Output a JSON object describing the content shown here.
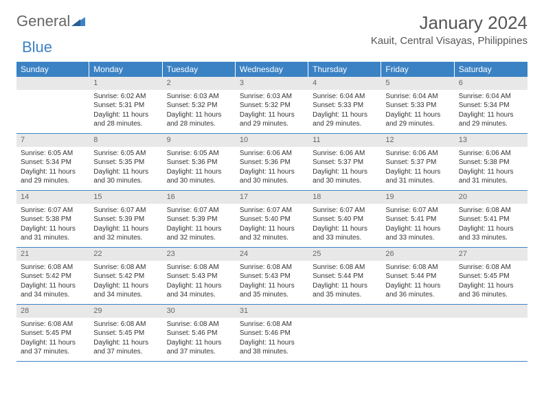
{
  "logo": {
    "general": "General",
    "blue": "Blue"
  },
  "header": {
    "month_title": "January 2024",
    "location": "Kauit, Central Visayas, Philippines"
  },
  "weekdays": [
    "Sunday",
    "Monday",
    "Tuesday",
    "Wednesday",
    "Thursday",
    "Friday",
    "Saturday"
  ],
  "colors": {
    "header_bg": "#3b82c4",
    "daynum_bg": "#e8e8e8",
    "text": "#333333",
    "logo_blue": "#3b82c4",
    "logo_gray": "#666666"
  },
  "weeks": [
    [
      {
        "day": "",
        "sunrise": "",
        "sunset": "",
        "daylight": ""
      },
      {
        "day": "1",
        "sunrise": "Sunrise: 6:02 AM",
        "sunset": "Sunset: 5:31 PM",
        "daylight": "Daylight: 11 hours and 28 minutes."
      },
      {
        "day": "2",
        "sunrise": "Sunrise: 6:03 AM",
        "sunset": "Sunset: 5:32 PM",
        "daylight": "Daylight: 11 hours and 28 minutes."
      },
      {
        "day": "3",
        "sunrise": "Sunrise: 6:03 AM",
        "sunset": "Sunset: 5:32 PM",
        "daylight": "Daylight: 11 hours and 29 minutes."
      },
      {
        "day": "4",
        "sunrise": "Sunrise: 6:04 AM",
        "sunset": "Sunset: 5:33 PM",
        "daylight": "Daylight: 11 hours and 29 minutes."
      },
      {
        "day": "5",
        "sunrise": "Sunrise: 6:04 AM",
        "sunset": "Sunset: 5:33 PM",
        "daylight": "Daylight: 11 hours and 29 minutes."
      },
      {
        "day": "6",
        "sunrise": "Sunrise: 6:04 AM",
        "sunset": "Sunset: 5:34 PM",
        "daylight": "Daylight: 11 hours and 29 minutes."
      }
    ],
    [
      {
        "day": "7",
        "sunrise": "Sunrise: 6:05 AM",
        "sunset": "Sunset: 5:34 PM",
        "daylight": "Daylight: 11 hours and 29 minutes."
      },
      {
        "day": "8",
        "sunrise": "Sunrise: 6:05 AM",
        "sunset": "Sunset: 5:35 PM",
        "daylight": "Daylight: 11 hours and 30 minutes."
      },
      {
        "day": "9",
        "sunrise": "Sunrise: 6:05 AM",
        "sunset": "Sunset: 5:36 PM",
        "daylight": "Daylight: 11 hours and 30 minutes."
      },
      {
        "day": "10",
        "sunrise": "Sunrise: 6:06 AM",
        "sunset": "Sunset: 5:36 PM",
        "daylight": "Daylight: 11 hours and 30 minutes."
      },
      {
        "day": "11",
        "sunrise": "Sunrise: 6:06 AM",
        "sunset": "Sunset: 5:37 PM",
        "daylight": "Daylight: 11 hours and 30 minutes."
      },
      {
        "day": "12",
        "sunrise": "Sunrise: 6:06 AM",
        "sunset": "Sunset: 5:37 PM",
        "daylight": "Daylight: 11 hours and 31 minutes."
      },
      {
        "day": "13",
        "sunrise": "Sunrise: 6:06 AM",
        "sunset": "Sunset: 5:38 PM",
        "daylight": "Daylight: 11 hours and 31 minutes."
      }
    ],
    [
      {
        "day": "14",
        "sunrise": "Sunrise: 6:07 AM",
        "sunset": "Sunset: 5:38 PM",
        "daylight": "Daylight: 11 hours and 31 minutes."
      },
      {
        "day": "15",
        "sunrise": "Sunrise: 6:07 AM",
        "sunset": "Sunset: 5:39 PM",
        "daylight": "Daylight: 11 hours and 32 minutes."
      },
      {
        "day": "16",
        "sunrise": "Sunrise: 6:07 AM",
        "sunset": "Sunset: 5:39 PM",
        "daylight": "Daylight: 11 hours and 32 minutes."
      },
      {
        "day": "17",
        "sunrise": "Sunrise: 6:07 AM",
        "sunset": "Sunset: 5:40 PM",
        "daylight": "Daylight: 11 hours and 32 minutes."
      },
      {
        "day": "18",
        "sunrise": "Sunrise: 6:07 AM",
        "sunset": "Sunset: 5:40 PM",
        "daylight": "Daylight: 11 hours and 33 minutes."
      },
      {
        "day": "19",
        "sunrise": "Sunrise: 6:07 AM",
        "sunset": "Sunset: 5:41 PM",
        "daylight": "Daylight: 11 hours and 33 minutes."
      },
      {
        "day": "20",
        "sunrise": "Sunrise: 6:08 AM",
        "sunset": "Sunset: 5:41 PM",
        "daylight": "Daylight: 11 hours and 33 minutes."
      }
    ],
    [
      {
        "day": "21",
        "sunrise": "Sunrise: 6:08 AM",
        "sunset": "Sunset: 5:42 PM",
        "daylight": "Daylight: 11 hours and 34 minutes."
      },
      {
        "day": "22",
        "sunrise": "Sunrise: 6:08 AM",
        "sunset": "Sunset: 5:42 PM",
        "daylight": "Daylight: 11 hours and 34 minutes."
      },
      {
        "day": "23",
        "sunrise": "Sunrise: 6:08 AM",
        "sunset": "Sunset: 5:43 PM",
        "daylight": "Daylight: 11 hours and 34 minutes."
      },
      {
        "day": "24",
        "sunrise": "Sunrise: 6:08 AM",
        "sunset": "Sunset: 5:43 PM",
        "daylight": "Daylight: 11 hours and 35 minutes."
      },
      {
        "day": "25",
        "sunrise": "Sunrise: 6:08 AM",
        "sunset": "Sunset: 5:44 PM",
        "daylight": "Daylight: 11 hours and 35 minutes."
      },
      {
        "day": "26",
        "sunrise": "Sunrise: 6:08 AM",
        "sunset": "Sunset: 5:44 PM",
        "daylight": "Daylight: 11 hours and 36 minutes."
      },
      {
        "day": "27",
        "sunrise": "Sunrise: 6:08 AM",
        "sunset": "Sunset: 5:45 PM",
        "daylight": "Daylight: 11 hours and 36 minutes."
      }
    ],
    [
      {
        "day": "28",
        "sunrise": "Sunrise: 6:08 AM",
        "sunset": "Sunset: 5:45 PM",
        "daylight": "Daylight: 11 hours and 37 minutes."
      },
      {
        "day": "29",
        "sunrise": "Sunrise: 6:08 AM",
        "sunset": "Sunset: 5:45 PM",
        "daylight": "Daylight: 11 hours and 37 minutes."
      },
      {
        "day": "30",
        "sunrise": "Sunrise: 6:08 AM",
        "sunset": "Sunset: 5:46 PM",
        "daylight": "Daylight: 11 hours and 37 minutes."
      },
      {
        "day": "31",
        "sunrise": "Sunrise: 6:08 AM",
        "sunset": "Sunset: 5:46 PM",
        "daylight": "Daylight: 11 hours and 38 minutes."
      },
      {
        "day": "",
        "sunrise": "",
        "sunset": "",
        "daylight": ""
      },
      {
        "day": "",
        "sunrise": "",
        "sunset": "",
        "daylight": ""
      },
      {
        "day": "",
        "sunrise": "",
        "sunset": "",
        "daylight": ""
      }
    ]
  ]
}
